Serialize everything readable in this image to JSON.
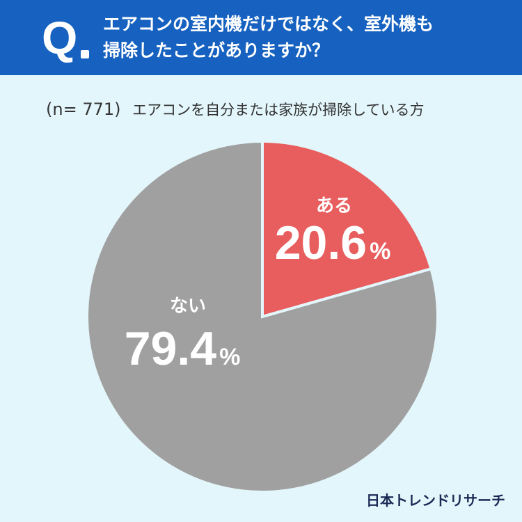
{
  "header": {
    "q_mark": "Q",
    "question_lines": [
      "エアコンの室内機だけではなく、室外機も",
      "掃除したことがありますか？"
    ]
  },
  "subtitle": {
    "n_label": "(n= 771)",
    "description": "エアコンを自分または家族が掃除している方"
  },
  "colors": {
    "header_bg": "#1762c0",
    "page_bg": "#e3f6fb",
    "slice_yes": "#e85e5e",
    "slice_no": "#a0a0a0",
    "separator": "#e3f6fb"
  },
  "chart_data": {
    "type": "pie",
    "title": "",
    "slices": [
      {
        "label": "ある",
        "value": 20.6,
        "display": "20.6",
        "unit": "%",
        "color": "#e85e5e"
      },
      {
        "label": "ない",
        "value": 79.4,
        "display": "79.4",
        "unit": "%",
        "color": "#a0a0a0"
      }
    ],
    "start": "12 o'clock",
    "direction": "clockwise"
  },
  "logo": {
    "text": "日本トレンドリサーチ"
  }
}
